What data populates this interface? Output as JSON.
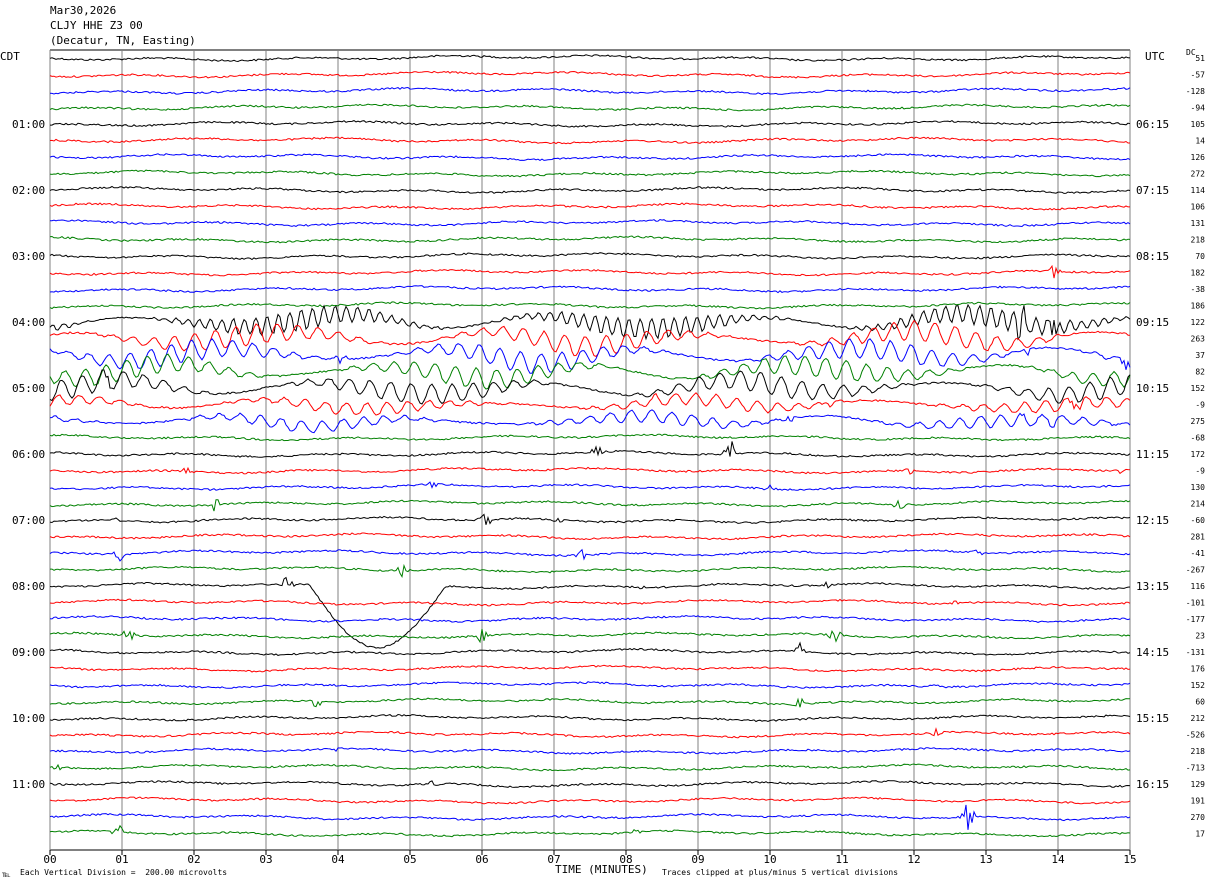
{
  "header": {
    "date": "Mar30,2026",
    "station": "CLJY HHE Z3 00",
    "location": "(Decatur, TN, Easting)"
  },
  "left_tz_label": "CDT",
  "right_tz_label": "UTC",
  "dc_label": "DC",
  "footer": {
    "left_mark": "℡",
    "scale_note": "Each Vertical Division =  200.00 microvolts",
    "clip_note": "Traces clipped at plus/minus 5 vertical divisions"
  },
  "colors": {
    "trace_cycle": [
      "#000000",
      "#ff0000",
      "#0000ff",
      "#008000"
    ],
    "grid": "#808080"
  },
  "chart_data": {
    "type": "line",
    "title": "CLJY HHE Z3 00",
    "xlabel": "TIME (MINUTES)",
    "ylabel": "",
    "xlim": [
      0,
      15
    ],
    "x_ticks": [
      "00",
      "01",
      "02",
      "03",
      "04",
      "05",
      "06",
      "07",
      "08",
      "09",
      "10",
      "11",
      "12",
      "13",
      "14",
      "15"
    ],
    "vertical_gridlines": true,
    "row_count": 48,
    "left_time_labels": [
      {
        "row": 4,
        "text": "01:00"
      },
      {
        "row": 8,
        "text": "02:00"
      },
      {
        "row": 12,
        "text": "03:00"
      },
      {
        "row": 16,
        "text": "04:00"
      },
      {
        "row": 20,
        "text": "05:00"
      },
      {
        "row": 24,
        "text": "06:00"
      },
      {
        "row": 28,
        "text": "07:00"
      },
      {
        "row": 32,
        "text": "08:00"
      },
      {
        "row": 36,
        "text": "09:00"
      },
      {
        "row": 40,
        "text": "10:00"
      },
      {
        "row": 44,
        "text": "11:00"
      }
    ],
    "right_time_labels": [
      {
        "row": 4,
        "text": "06:15"
      },
      {
        "row": 8,
        "text": "07:15"
      },
      {
        "row": 12,
        "text": "08:15"
      },
      {
        "row": 16,
        "text": "09:15"
      },
      {
        "row": 20,
        "text": "10:15"
      },
      {
        "row": 24,
        "text": "11:15"
      },
      {
        "row": 28,
        "text": "12:15"
      },
      {
        "row": 32,
        "text": "13:15"
      },
      {
        "row": 36,
        "text": "14:15"
      },
      {
        "row": 40,
        "text": "15:15"
      },
      {
        "row": 44,
        "text": "16:15"
      }
    ],
    "dc_offsets": [
      "51",
      "-57",
      "-128",
      "-94",
      "105",
      "14",
      "126",
      "272",
      "114",
      "106",
      "131",
      "218",
      "70",
      "182",
      "-38",
      "186",
      "122",
      "263",
      "37",
      "82",
      "152",
      "-9",
      "275",
      "-68",
      "172",
      "-9",
      "130",
      "214",
      "-60",
      "281",
      "-41",
      "-267",
      "116",
      "-101",
      "-177",
      "23",
      "-131",
      "176",
      "152",
      "60",
      "212",
      "-526",
      "218",
      "-713",
      "129",
      "191",
      "270",
      "17"
    ],
    "events": [
      {
        "row": 13,
        "minute": 13.95,
        "amplitude": "medium"
      },
      {
        "row": 16,
        "minute": 13.5,
        "amplitude": "large"
      },
      {
        "row": 16,
        "minute": 13.95,
        "amplitude": "large"
      },
      {
        "row": 18,
        "minute": 4.05,
        "amplitude": "medium"
      },
      {
        "row": 18,
        "minute": 13.6,
        "amplitude": "medium"
      },
      {
        "row": 18,
        "minute": 14.95,
        "amplitude": "medium"
      },
      {
        "row": 20,
        "minute": 0.8,
        "amplitude": "medium"
      },
      {
        "row": 21,
        "minute": 8.4,
        "amplitude": "small"
      },
      {
        "row": 21,
        "minute": 10.8,
        "amplitude": "small"
      },
      {
        "row": 21,
        "minute": 14.25,
        "amplitude": "medium"
      },
      {
        "row": 22,
        "minute": 10.3,
        "amplitude": "small"
      },
      {
        "row": 22,
        "minute": 13.5,
        "amplitude": "small"
      },
      {
        "row": 22,
        "minute": 13.95,
        "amplitude": "small"
      },
      {
        "row": 24,
        "minute": 7.6,
        "amplitude": "medium"
      },
      {
        "row": 24,
        "minute": 9.45,
        "amplitude": "large"
      },
      {
        "row": 25,
        "minute": 1.9,
        "amplitude": "small"
      },
      {
        "row": 25,
        "minute": 11.95,
        "amplitude": "small"
      },
      {
        "row": 25,
        "minute": 14.85,
        "amplitude": "small"
      },
      {
        "row": 26,
        "minute": 5.3,
        "amplitude": "small"
      },
      {
        "row": 26,
        "minute": 10.0,
        "amplitude": "small"
      },
      {
        "row": 27,
        "minute": 2.3,
        "amplitude": "medium"
      },
      {
        "row": 27,
        "minute": 11.8,
        "amplitude": "medium"
      },
      {
        "row": 28,
        "minute": 0.9,
        "amplitude": "small"
      },
      {
        "row": 28,
        "minute": 6.05,
        "amplitude": "medium"
      },
      {
        "row": 28,
        "minute": 7.05,
        "amplitude": "small"
      },
      {
        "row": 30,
        "minute": 0.95,
        "amplitude": "medium"
      },
      {
        "row": 30,
        "minute": 7.4,
        "amplitude": "medium"
      },
      {
        "row": 30,
        "minute": 12.9,
        "amplitude": "small"
      },
      {
        "row": 31,
        "minute": 4.9,
        "amplitude": "medium"
      },
      {
        "row": 32,
        "minute": 3.3,
        "amplitude": "medium"
      },
      {
        "row": 32,
        "minute": 8.15,
        "amplitude": "small"
      },
      {
        "row": 32,
        "minute": 10.8,
        "amplitude": "small"
      },
      {
        "row": 33,
        "minute": 12.6,
        "amplitude": "small"
      },
      {
        "row": 35,
        "minute": 1.1,
        "amplitude": "medium"
      },
      {
        "row": 35,
        "minute": 6.0,
        "amplitude": "medium"
      },
      {
        "row": 35,
        "minute": 10.9,
        "amplitude": "medium"
      },
      {
        "row": 36,
        "minute": 10.45,
        "amplitude": "large"
      },
      {
        "row": 38,
        "minute": 12.3,
        "amplitude": "small"
      },
      {
        "row": 39,
        "minute": 3.7,
        "amplitude": "medium"
      },
      {
        "row": 39,
        "minute": 10.4,
        "amplitude": "medium"
      },
      {
        "row": 41,
        "minute": 12.3,
        "amplitude": "small"
      },
      {
        "row": 42,
        "minute": 4.0,
        "amplitude": "small"
      },
      {
        "row": 43,
        "minute": 0.1,
        "amplitude": "small"
      },
      {
        "row": 44,
        "minute": 5.3,
        "amplitude": "small"
      },
      {
        "row": 46,
        "minute": 12.75,
        "amplitude": "large"
      },
      {
        "row": 47,
        "minute": 0.95,
        "amplitude": "medium"
      },
      {
        "row": 47,
        "minute": 8.1,
        "amplitude": "small"
      }
    ],
    "long_period_rows": [
      16,
      17,
      18,
      19,
      20,
      21,
      22
    ],
    "drift_segment": {
      "row": 32,
      "start_minute": 3.6,
      "end_minute": 5.5
    }
  }
}
